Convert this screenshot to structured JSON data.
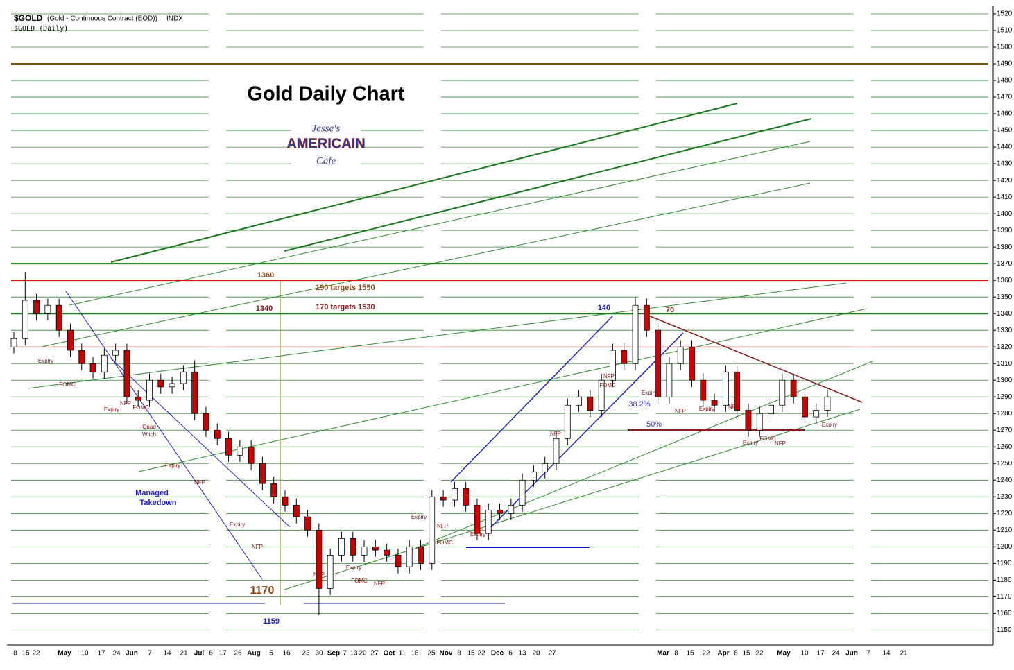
{
  "header": {
    "symbol": "$GOLD",
    "description": "(Gold - Continuous Contract (EOD))",
    "exchange": "INDX",
    "period": "$GOLD (Daily)"
  },
  "logo": {
    "top": "Jesse's",
    "middle": "AMERICAIN",
    "bottom": "Cafe"
  },
  "chart_data": {
    "type": "candlestick",
    "title": "Gold Daily Chart",
    "ylim": [
      1141,
      1525
    ],
    "yticks": [
      1150,
      1160,
      1170,
      1180,
      1190,
      1200,
      1210,
      1220,
      1230,
      1240,
      1250,
      1260,
      1270,
      1280,
      1290,
      1300,
      1310,
      1320,
      1330,
      1340,
      1350,
      1360,
      1370,
      1380,
      1390,
      1400,
      1410,
      1420,
      1430,
      1440,
      1450,
      1460,
      1470,
      1480,
      1490,
      1500,
      1510,
      1520
    ],
    "grid": true,
    "grid_color": "#2e8b2e",
    "up_color": "#ffffff",
    "down_color": "#cc0000",
    "xlabels": [
      "8",
      "15",
      "22",
      "May",
      "10",
      "17",
      "24",
      "Jun",
      "7",
      "14",
      "21",
      "Jul",
      "6",
      "17",
      "26",
      "Aug",
      "5",
      "16",
      "23",
      "30",
      "Sep",
      "7",
      "13",
      "20",
      "27",
      "Oct",
      "11",
      "18",
      "25",
      "Nov",
      "8",
      "15",
      "22",
      "Dec",
      "6",
      "13",
      "20",
      "27",
      "Mar",
      "8",
      "15",
      "22",
      "Apr",
      "8",
      "15",
      "22",
      "May",
      "10",
      "17",
      "24",
      "Jun",
      "7",
      "14",
      "21"
    ],
    "series": [
      {
        "name": "$GOLD",
        "open": [
          1320,
          1325,
          1348,
          1340,
          1345,
          1330,
          1318,
          1310,
          1305,
          1315,
          1318,
          1290,
          1288,
          1300,
          1296,
          1298,
          1305,
          1280,
          1270,
          1265,
          1255,
          1260,
          1250,
          1238,
          1230,
          1225,
          1218,
          1210,
          1175,
          1195,
          1205,
          1195,
          1200,
          1198,
          1195,
          1188,
          1200,
          1190,
          1230,
          1228,
          1235,
          1225,
          1208,
          1222,
          1220,
          1225,
          1240,
          1245,
          1250,
          1265,
          1285,
          1290,
          1282,
          1300,
          1318,
          1310,
          1345,
          1330,
          1290,
          1310,
          1320,
          1300,
          1288,
          1285,
          1305,
          1282,
          1270,
          1280,
          1285,
          1300,
          1290,
          1278,
          1282
        ],
        "high": [
          1329,
          1365,
          1352,
          1349,
          1349,
          1334,
          1322,
          1314,
          1319,
          1322,
          1322,
          1294,
          1304,
          1304,
          1302,
          1309,
          1312,
          1284,
          1274,
          1269,
          1264,
          1264,
          1254,
          1242,
          1234,
          1229,
          1222,
          1214,
          1199,
          1209,
          1209,
          1204,
          1204,
          1202,
          1199,
          1204,
          1204,
          1234,
          1234,
          1239,
          1239,
          1229,
          1226,
          1226,
          1229,
          1244,
          1249,
          1254,
          1269,
          1289,
          1294,
          1294,
          1304,
          1322,
          1322,
          1350,
          1349,
          1334,
          1314,
          1324,
          1324,
          1304,
          1292,
          1309,
          1309,
          1286,
          1284,
          1289,
          1304,
          1304,
          1294,
          1286,
          1294
        ],
        "low": [
          1316,
          1321,
          1336,
          1336,
          1326,
          1314,
          1306,
          1301,
          1301,
          1311,
          1286,
          1284,
          1284,
          1292,
          1292,
          1294,
          1276,
          1266,
          1261,
          1251,
          1251,
          1246,
          1234,
          1226,
          1221,
          1214,
          1206,
          1159,
          1171,
          1191,
          1191,
          1191,
          1194,
          1191,
          1184,
          1184,
          1186,
          1186,
          1224,
          1224,
          1221,
          1204,
          1204,
          1216,
          1216,
          1221,
          1236,
          1241,
          1246,
          1261,
          1281,
          1278,
          1278,
          1296,
          1306,
          1306,
          1326,
          1286,
          1286,
          1306,
          1296,
          1284,
          1281,
          1281,
          1278,
          1266,
          1266,
          1276,
          1281,
          1286,
          1274,
          1274,
          1278
        ],
        "close": [
          1325,
          1348,
          1340,
          1345,
          1330,
          1318,
          1310,
          1305,
          1315,
          1318,
          1290,
          1288,
          1300,
          1296,
          1298,
          1305,
          1280,
          1270,
          1265,
          1255,
          1260,
          1250,
          1238,
          1230,
          1225,
          1218,
          1210,
          1175,
          1195,
          1205,
          1195,
          1200,
          1198,
          1195,
          1188,
          1200,
          1190,
          1230,
          1228,
          1235,
          1225,
          1208,
          1222,
          1220,
          1225,
          1240,
          1245,
          1250,
          1265,
          1285,
          1290,
          1282,
          1300,
          1318,
          1310,
          1345,
          1330,
          1290,
          1310,
          1320,
          1300,
          1288,
          1285,
          1305,
          1282,
          1270,
          1280,
          1285,
          1300,
          1290,
          1278,
          1282,
          1290
        ]
      }
    ],
    "levels": [
      {
        "value": 1490,
        "color": "#7f4f1f"
      },
      {
        "value": 1370,
        "color": "#1a7a1a"
      },
      {
        "value": 1360,
        "color": "#dd1111"
      },
      {
        "value": 1340,
        "color": "#1a7a1a"
      },
      {
        "value": 1320,
        "color": "#cc3333"
      }
    ],
    "annotations": [
      {
        "text": "Expiry",
        "color": "#7a1010"
      },
      {
        "text": "FOMC",
        "color": "#7a1010"
      },
      {
        "text": "Expiry",
        "color": "#7a1010"
      },
      {
        "text": "NFP",
        "color": "#7a1010"
      },
      {
        "text": "FOMC",
        "color": "#7a1010"
      },
      {
        "text": "Quad",
        "color": "#7a1010"
      },
      {
        "text": "Witch",
        "color": "#7a1010"
      },
      {
        "text": "Expiry",
        "color": "#7a1010"
      },
      {
        "text": "NFP",
        "color": "#7a1010"
      },
      {
        "text": "Expiry",
        "color": "#7a1010"
      },
      {
        "text": "NFP",
        "color": "#7a1010"
      },
      {
        "text": "NFP",
        "color": "#7a1010"
      },
      {
        "text": "Expiry",
        "color": "#7a1010"
      },
      {
        "text": "FOMC",
        "color": "#7a1010"
      },
      {
        "text": "NFP",
        "color": "#7a1010"
      },
      {
        "text": "Expiry",
        "color": "#7a1010"
      },
      {
        "text": "NFP",
        "color": "#7a1010"
      },
      {
        "text": "FOMC",
        "color": "#7a1010"
      },
      {
        "text": "Expiry",
        "color": "#7a1010"
      },
      {
        "text": "NFP",
        "color": "#7a1010"
      },
      {
        "text": "NFP",
        "color": "#7a1010"
      },
      {
        "text": "FOMC",
        "color": "#7a1010"
      },
      {
        "text": "Expiry",
        "color": "#7a1010"
      },
      {
        "text": "NFP",
        "color": "#7a1010"
      },
      {
        "text": "Expiry",
        "color": "#7a1010"
      },
      {
        "text": "NFP",
        "color": "#7a1010"
      },
      {
        "text": "FOMC",
        "color": "#7a1010"
      },
      {
        "text": "Expiry",
        "color": "#7a1010"
      },
      {
        "text": "NFP",
        "color": "#7a1010"
      },
      {
        "text": "Expiry",
        "color": "#7a1010"
      },
      {
        "text": "Managed",
        "color": "#2222bb"
      },
      {
        "text": "Takedown",
        "color": "#2222bb"
      },
      {
        "text": "38.2%",
        "color": "#3333cc"
      },
      {
        "text": "50%",
        "color": "#3333cc"
      },
      {
        "text": "1360",
        "color": "#8b4513"
      },
      {
        "text": "1340",
        "color": "#8b1a1a"
      },
      {
        "text": "190  targets 1550",
        "color": "#8b4513"
      },
      {
        "text": "170 targets 1530",
        "color": "#8b1a1a"
      },
      {
        "text": "140",
        "color": "#2222cc"
      },
      {
        "text": "70",
        "color": "#8b1a1a"
      },
      {
        "text": "1170",
        "color": "#8b4513"
      },
      {
        "text": "1159",
        "color": "#2222aa"
      }
    ]
  }
}
